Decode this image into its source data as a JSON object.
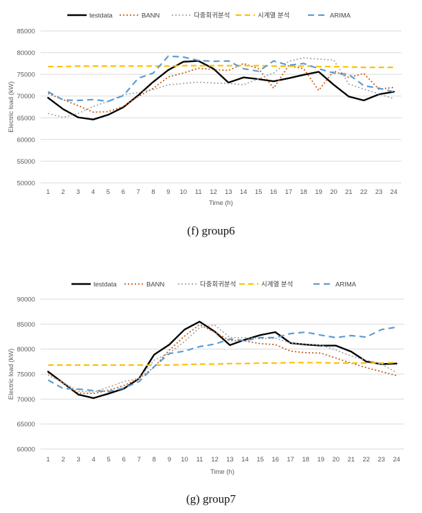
{
  "styles": {
    "testdata": {
      "color": "#000000",
      "dash": "",
      "width": 2.4
    },
    "BANN": {
      "color": "#C55A11",
      "dash": "2 3",
      "width": 1.8
    },
    "다중회귀분석": {
      "color": "#A6A6A6",
      "dash": "2 3",
      "width": 1.8
    },
    "시계열 분석": {
      "color": "#FFC000",
      "dash": "8 5",
      "width": 2.2
    },
    "ARIMA": {
      "color": "#5B9BD5",
      "dash": "9 6",
      "width": 2.2
    },
    "grid": "#d9d9d9"
  },
  "panels": [
    {
      "caption": "(f)  group6",
      "chart_data": {
        "type": "line",
        "xlabel": "Time (h)",
        "ylabel": "Electric load (kW)",
        "ylim": [
          50000,
          85000
        ],
        "yticks": [
          50000,
          55000,
          60000,
          65000,
          70000,
          75000,
          80000,
          85000
        ],
        "grid": true,
        "legend_position": "top",
        "x": [
          1,
          2,
          3,
          4,
          5,
          6,
          7,
          8,
          9,
          10,
          11,
          12,
          13,
          14,
          15,
          16,
          17,
          18,
          19,
          20,
          21,
          22,
          23,
          24
        ],
        "series": [
          {
            "name": "testdata",
            "values": [
              69600,
              67000,
              65100,
              64600,
              65700,
              67400,
              70200,
              73300,
              76000,
              77900,
              78100,
              76300,
              73100,
              74300,
              73900,
              73400,
              74100,
              74900,
              75600,
              72600,
              69900,
              69000,
              70400,
              71000
            ]
          },
          {
            "name": "BANN",
            "values": [
              70600,
              69200,
              67800,
              66300,
              66400,
              67600,
              69900,
              71800,
              74400,
              75300,
              76400,
              76100,
              75900,
              77500,
              76300,
              71800,
              77000,
              76300,
              71300,
              75800,
              74300,
              75200,
              71600,
              72000
            ]
          },
          {
            "name": "다중회귀분석",
            "values": [
              66000,
              65100,
              66000,
              67600,
              68800,
              70300,
              70800,
              71500,
              72600,
              72900,
              73200,
              73000,
              72900,
              72600,
              74000,
              75300,
              78000,
              78800,
              78500,
              78300,
              72800,
              71600,
              70500,
              69400
            ]
          },
          {
            "name": "시계열 분석",
            "values": [
              76800,
              76800,
              76900,
              76900,
              76900,
              76900,
              76900,
              76900,
              76900,
              77000,
              77000,
              77000,
              77000,
              77000,
              77000,
              76900,
              76900,
              76900,
              76800,
              76800,
              76700,
              76600,
              76600,
              76600
            ]
          },
          {
            "name": "ARIMA",
            "values": [
              71000,
              69100,
              69000,
              69200,
              68800,
              70100,
              74100,
              75300,
              79200,
              79000,
              78200,
              78000,
              78100,
              76300,
              75700,
              78100,
              77100,
              77500,
              76300,
              75300,
              75000,
              72400,
              71800,
              71000
            ]
          }
        ]
      }
    },
    {
      "caption": "(g)  group7",
      "chart_data": {
        "type": "line",
        "xlabel": "Time (h)",
        "ylabel": "Electric load (kW)",
        "ylim": [
          60000,
          90000
        ],
        "yticks": [
          60000,
          65000,
          70000,
          75000,
          80000,
          85000,
          90000
        ],
        "grid": true,
        "legend_position": "top",
        "x": [
          1,
          2,
          3,
          4,
          5,
          6,
          7,
          8,
          9,
          10,
          11,
          12,
          13,
          14,
          15,
          16,
          17,
          18,
          19,
          20,
          21,
          22,
          23,
          24
        ],
        "series": [
          {
            "name": "testdata",
            "values": [
              75500,
              73200,
              70900,
              70200,
              71100,
              72100,
              74100,
              78900,
              80900,
              83900,
              85500,
              83500,
              80800,
              81900,
              82800,
              83400,
              81200,
              80900,
              80700,
              80700,
              79500,
              77500,
              77000,
              77100
            ]
          },
          {
            "name": "BANN",
            "values": [
              75200,
              73100,
              71200,
              71100,
              71800,
              72700,
              74100,
              76400,
              79800,
              82600,
              84900,
              83400,
              81700,
              81600,
              81100,
              80900,
              79600,
              79300,
              79200,
              78200,
              77200,
              76300,
              75500,
              74700
            ]
          },
          {
            "name": "다중회귀분석",
            "values": [
              74800,
              73300,
              71600,
              71400,
              72400,
              73500,
              74100,
              77800,
              79200,
              81500,
              84300,
              84800,
              82300,
              82300,
              82100,
              82200,
              81200,
              81000,
              80800,
              79800,
              78600,
              77800,
              77000,
              75300
            ]
          },
          {
            "name": "시계열 분석",
            "values": [
              76800,
              76800,
              76800,
              76800,
              76800,
              76800,
              76800,
              76800,
              76800,
              76900,
              77000,
              77000,
              77100,
              77100,
              77200,
              77200,
              77300,
              77300,
              77300,
              77200,
              77200,
              77200,
              77200,
              77300
            ]
          },
          {
            "name": "ARIMA",
            "values": [
              73800,
              72100,
              72000,
              71700,
              71500,
              72200,
              73500,
              76500,
              79100,
              79600,
              80500,
              81000,
              82000,
              81700,
              82300,
              82300,
              83100,
              83400,
              82800,
              82300,
              82700,
              82400,
              83900,
              84400
            ]
          }
        ]
      }
    }
  ]
}
